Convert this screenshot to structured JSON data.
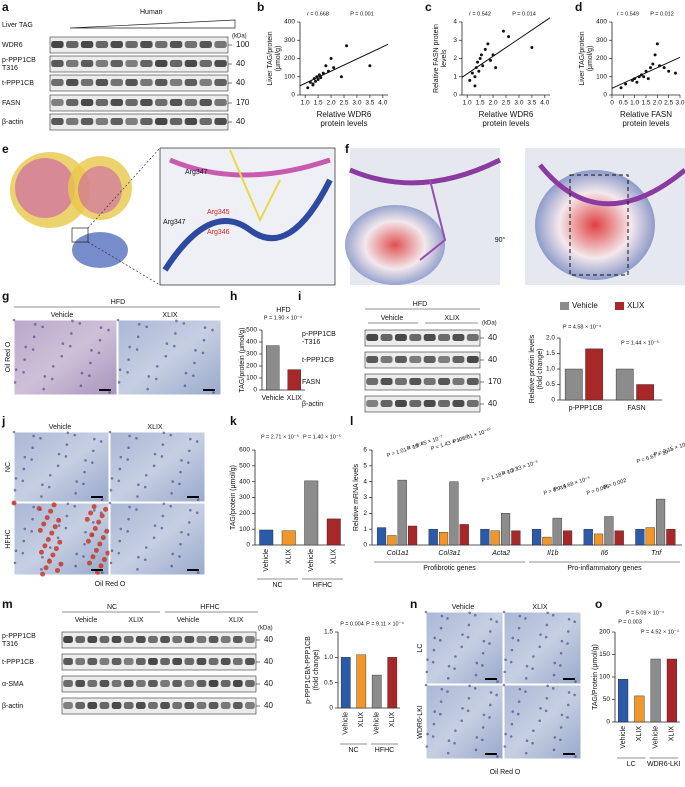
{
  "panels": {
    "a": {
      "letter": "a",
      "liver_tag": "Liver TAG",
      "human": "Human",
      "kda": "(kDa)",
      "rows": [
        {
          "lines": [
            "WDR6"
          ],
          "kda": "100"
        },
        {
          "lines": [
            "p-PPP1CB",
            "T316"
          ],
          "kda": "40"
        },
        {
          "lines": [
            "t-PPP1CB"
          ],
          "kda": "40"
        },
        {
          "lines": [
            "FASN"
          ],
          "kda": "170"
        },
        {
          "lines": [
            "β-actin"
          ],
          "kda": "40"
        }
      ]
    },
    "b": {
      "letter": "b"
    },
    "c": {
      "letter": "c"
    },
    "d": {
      "letter": "d"
    },
    "e": {
      "letter": "e",
      "labels": [
        "Arg347",
        "Arg347",
        "Arg345",
        "Arg346"
      ]
    },
    "f": {
      "letter": "f",
      "rotation": "90°"
    },
    "g": {
      "letter": "g",
      "condition": "HFD",
      "columns": [
        "Vehicle",
        "XLIX"
      ],
      "stain": "Oil Red O"
    },
    "h": {
      "letter": "h"
    },
    "i": {
      "letter": "i",
      "condition": "HFD",
      "columns": [
        "Vehicle",
        "XLIX"
      ],
      "kda": "(kDa)",
      "rows": [
        {
          "lines": [
            "p-PPP1CB",
            "-T316"
          ],
          "kda": "40"
        },
        {
          "lines": [
            "t-PPP1CB"
          ],
          "kda": "40"
        },
        {
          "lines": [
            "FASN"
          ],
          "kda": "170"
        },
        {
          "lines": [
            "β-actin"
          ],
          "kda": "40"
        }
      ]
    },
    "j": {
      "letter": "j",
      "columns": [
        "Vehicle",
        "XLIX"
      ],
      "rows": [
        "NC",
        "HFHC"
      ],
      "stain": "Oil Red O"
    },
    "k": {
      "letter": "k"
    },
    "l": {
      "letter": "l"
    },
    "m": {
      "letter": "m",
      "groups": [
        "NC",
        "HFHC"
      ],
      "columns": [
        "Vehicle",
        "XLIX",
        "Vehicle",
        "XLIX"
      ],
      "kda": "(kDa)",
      "rows": [
        {
          "lines": [
            "p-PPP1CB",
            "T316"
          ],
          "kda": "40"
        },
        {
          "lines": [
            "t-PPP1CB"
          ],
          "kda": "40"
        },
        {
          "lines": [
            "α-SMA"
          ],
          "kda": "40"
        },
        {
          "lines": [
            "β-actin"
          ],
          "kda": "40"
        }
      ]
    },
    "n": {
      "letter": "n",
      "columns": [
        "Vehicle",
        "XLIX"
      ],
      "rows": [
        "LC",
        "WDR6-LKI"
      ],
      "stain": "Oil Red O"
    },
    "o": {
      "letter": "o"
    }
  },
  "chart_data": [
    {
      "type": "scatter",
      "xlabel": [
        "Relative WDR6",
        "protein levels"
      ],
      "ylabel": [
        "Liver TAG/protein",
        "(μmol/g)"
      ],
      "annotations": [
        "r = 0.668",
        "P = 0.001"
      ],
      "color": "#111111",
      "x": [
        1.1,
        1.2,
        1.3,
        1.35,
        1.4,
        1.45,
        1.5,
        1.55,
        1.6,
        1.7,
        1.8,
        2.0,
        2.1,
        2.4,
        2.6,
        3.5,
        1.3,
        1.9
      ],
      "y": [
        40,
        70,
        55,
        90,
        75,
        100,
        85,
        110,
        95,
        120,
        160,
        200,
        150,
        100,
        270,
        160,
        60,
        130
      ],
      "xlim": [
        0.8,
        4.2
      ],
      "xticks": [
        {
          "value": 1,
          "label": "1.0"
        },
        1.5,
        {
          "value": 2,
          "label": "2.0"
        },
        2.5,
        {
          "value": 3,
          "label": "3.0"
        },
        3.5,
        {
          "value": 4,
          "label": "4.0"
        }
      ],
      "ylim": [
        0,
        400
      ],
      "yticks": [
        0,
        100,
        200,
        300,
        400
      ]
    },
    {
      "type": "scatter",
      "xlabel": [
        "Relative WDR6",
        "protein levels"
      ],
      "ylabel": [
        "Relative FASN protein",
        "levels"
      ],
      "annotations": [
        "r = 0.542",
        "P = 0.014"
      ],
      "color": "#111111",
      "x": [
        1.1,
        1.2,
        1.3,
        1.35,
        1.4,
        1.45,
        1.5,
        1.55,
        1.6,
        1.7,
        1.8,
        2.0,
        2.1,
        2.4,
        2.6,
        3.5,
        1.3,
        1.9
      ],
      "y": [
        0.8,
        1.2,
        1.0,
        1.5,
        1.8,
        1.3,
        2.0,
        2.2,
        1.6,
        2.5,
        2.8,
        2.2,
        1.5,
        3.5,
        3.2,
        2.6,
        0.5,
        1.9
      ],
      "xlim": [
        0.8,
        4.2
      ],
      "xticks": [
        {
          "value": 1,
          "label": "1.0"
        },
        1.5,
        {
          "value": 2,
          "label": "2.0"
        },
        2.5,
        {
          "value": 3,
          "label": "3.0"
        },
        3.5,
        {
          "value": 4,
          "label": "4.0"
        }
      ],
      "ylim": [
        0,
        4
      ],
      "yticks": [
        0,
        1,
        2,
        3,
        4
      ]
    },
    {
      "type": "scatter",
      "xlabel": [
        "Relative FASN",
        "protein levels"
      ],
      "ylabel": [
        "Liver TAG/protein",
        "(μmol/g)"
      ],
      "annotations": [
        "r = 0.549",
        "P = 0.012"
      ],
      "color": "#111111",
      "x": [
        0.4,
        0.6,
        0.9,
        1.0,
        1.1,
        1.2,
        1.3,
        1.5,
        1.6,
        1.7,
        1.8,
        1.9,
        2.0,
        2.1,
        2.3,
        2.5,
        2.8,
        1.4
      ],
      "y": [
        40,
        60,
        80,
        90,
        70,
        100,
        110,
        130,
        90,
        150,
        170,
        220,
        280,
        160,
        150,
        130,
        120,
        100
      ],
      "xlim": [
        0,
        3
      ],
      "xticks": [
        0,
        0.5,
        {
          "value": 1,
          "label": "1.0"
        },
        1.5,
        {
          "value": 2,
          "label": "2.0"
        },
        2.5,
        {
          "value": 3,
          "label": "3.0"
        }
      ],
      "ylim": [
        0,
        400
      ],
      "yticks": [
        0,
        100,
        200,
        300,
        400
      ]
    },
    {
      "type": "bar",
      "title": "HFD",
      "ylabel": [
        "TAG/protein (μmol/g)"
      ],
      "annotations": [
        "P = 1.90 × 10⁻⁴"
      ],
      "categories": [
        "Vehicle",
        "XLIX"
      ],
      "values": [
        370,
        170
      ],
      "colors": [
        "#8c8c8c",
        "#a8282a"
      ],
      "ylim": [
        0,
        500
      ],
      "yticks": [
        0,
        100,
        200,
        300,
        400,
        500
      ]
    },
    {
      "type": "bar",
      "ylabel": [
        "Relative protein levels",
        "(fold change)"
      ],
      "annotations": [
        "P = 4.58 × 10⁻⁴",
        "P = 1.44 × 10⁻⁵"
      ],
      "categories": [
        "p-PPP1CB",
        "FASN"
      ],
      "legend": "top",
      "series": [
        {
          "name": "Vehicle",
          "color": "#8c8c8c",
          "values": [
            1.0,
            1.0
          ]
        },
        {
          "name": "XLIX",
          "color": "#a8282a",
          "values": [
            1.65,
            0.5
          ]
        }
      ],
      "ylim": [
        0,
        2
      ],
      "yticks": [
        0,
        0.5,
        {
          "value": 1,
          "label": "1.0"
        },
        1.5,
        {
          "value": 2,
          "label": "2.0"
        }
      ]
    },
    {
      "type": "bar",
      "ylabel": [
        "TAG/protein (μmol/g)"
      ],
      "annotations": [
        "P = 2.71 × 10⁻⁵",
        "P = 1.40 × 10⁻⁵"
      ],
      "categories": [
        "Vehicle",
        "XLIX",
        "Vehicle",
        "XLIX"
      ],
      "groups": [
        "NC",
        "HFHC"
      ],
      "values": [
        95,
        90,
        405,
        165
      ],
      "colors": [
        "#2a5aa8",
        "#f0962a",
        "#8c8c8c",
        "#a8282a"
      ],
      "ylim": [
        0,
        600
      ],
      "yticks": [
        0,
        100,
        200,
        300,
        400,
        500,
        600
      ]
    },
    {
      "type": "bar",
      "ylabel": [
        "Relative mRNA levels"
      ],
      "annotations": [
        "P = 1.01 × 10⁻⁷",
        "P = 6.45 × 10⁻⁷",
        "P = 1.43 × 10⁻¹⁰",
        "P = 6.01 × 10⁻¹⁰",
        "P = 1.18 × 10⁻⁴",
        "P = 3.33 × 10⁻⁵",
        "P = 0.013",
        "P = 4.68 × 10⁻⁵",
        "P = 0.006",
        "P = 0.002",
        "P = 6.67 × 10⁻⁵",
        "P = 2.15 × 10⁻⁶"
      ],
      "categories": [
        "Col1a1",
        "Col3a1",
        "Acta2",
        "Il1b",
        "Il6",
        "Tnf"
      ],
      "groups": [
        "Profibrotic genes",
        "Pro-inflammatory genes"
      ],
      "series": [
        {
          "color": "#2a5aa8",
          "values": [
            1.1,
            1.0,
            1.0,
            1.0,
            1.0,
            1.0
          ]
        },
        {
          "color": "#f0962a",
          "values": [
            0.6,
            0.8,
            0.9,
            0.5,
            0.7,
            1.1
          ]
        },
        {
          "color": "#8c8c8c",
          "values": [
            4.1,
            4.0,
            2.0,
            1.7,
            1.8,
            2.9
          ]
        },
        {
          "color": "#a8282a",
          "values": [
            1.2,
            1.3,
            0.9,
            0.9,
            0.9,
            1.0
          ]
        }
      ],
      "ylim": [
        0,
        6
      ],
      "yticks": [
        0,
        1,
        2,
        3,
        4,
        5,
        6
      ]
    },
    {
      "type": "bar",
      "ylabel": [
        "p-PPP1CB/t-PPP1CB",
        "(fold change)"
      ],
      "annotations": [
        "P = 0.004",
        "P = 9.11 × 10⁻⁴"
      ],
      "categories": [
        "Vehicle",
        "XLIX",
        "Vehicle",
        "XLIX"
      ],
      "groups": [
        "NC",
        "HFHC"
      ],
      "values": [
        1.0,
        1.05,
        0.65,
        1.0
      ],
      "colors": [
        "#2a5aa8",
        "#f0962a",
        "#8c8c8c",
        "#a8282a"
      ],
      "ylim": [
        0,
        1.5
      ],
      "yticks": [
        0,
        0.5,
        {
          "value": 1,
          "label": "1.0"
        },
        1.5
      ]
    },
    {
      "type": "bar",
      "ylabel": [
        "TAG/Protein (μmol/g)"
      ],
      "annotations": [
        "P = 5.09 × 10⁻⁴",
        "P = 0.003",
        "P = 4.52 × 10⁻⁴"
      ],
      "categories": [
        "Vehicle",
        "XLIX",
        "Vehicle",
        "XLIX"
      ],
      "groups": [
        "LC",
        "WDR6-LKI"
      ],
      "values": [
        95,
        58,
        140,
        140
      ],
      "colors": [
        "#2a5aa8",
        "#f0962a",
        "#8c8c8c",
        "#a8282a"
      ],
      "ylim": [
        0,
        200
      ],
      "yticks": [
        0,
        50,
        100,
        150,
        200
      ]
    }
  ]
}
